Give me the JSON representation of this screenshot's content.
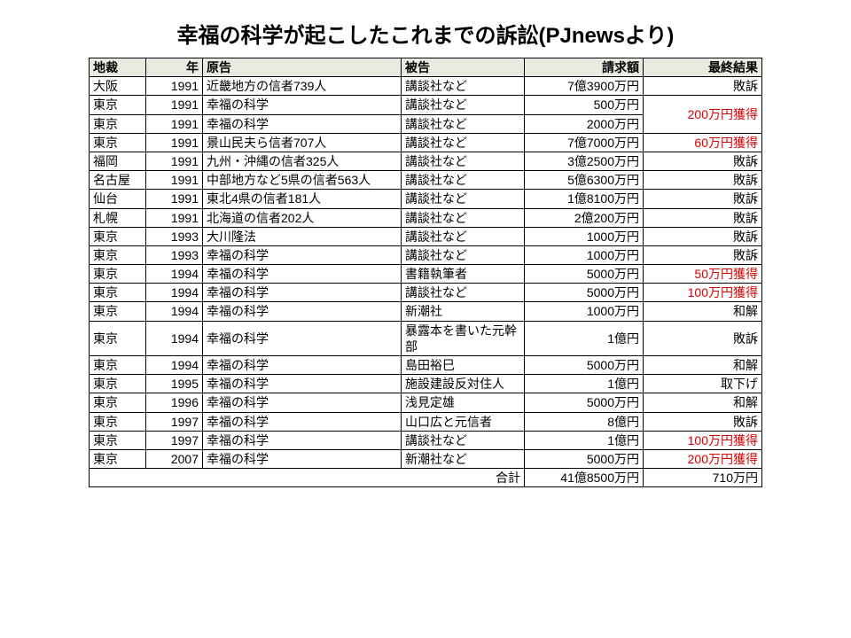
{
  "title": "幸福の科学が起こしたこれまでの訴訟(PJnewsより)",
  "columns": [
    "地裁",
    "年",
    "原告",
    "被告",
    "請求額",
    "最終結果"
  ],
  "rows": [
    {
      "court": "大阪",
      "year": "1991",
      "plaintiff": "近畿地方の信者739人",
      "defendant": "講談社など",
      "amount": "7億3900万円",
      "result": "敗訴",
      "red": false,
      "rowspan": 1
    },
    {
      "court": "東京",
      "year": "1991",
      "plaintiff": "幸福の科学",
      "defendant": "講談社など",
      "amount": "500万円",
      "result": "200万円獲得",
      "red": true,
      "rowspan": 2
    },
    {
      "court": "東京",
      "year": "1991",
      "plaintiff": "幸福の科学",
      "defendant": "講談社など",
      "amount": "2000万円",
      "result": "",
      "red": false,
      "rowspan": 0
    },
    {
      "court": "東京",
      "year": "1991",
      "plaintiff": "景山民夫ら信者707人",
      "defendant": "講談社など",
      "amount": "7億7000万円",
      "result": "60万円獲得",
      "red": true,
      "rowspan": 1
    },
    {
      "court": "福岡",
      "year": "1991",
      "plaintiff": "九州・沖縄の信者325人",
      "defendant": "講談社など",
      "amount": "3億2500万円",
      "result": "敗訴",
      "red": false,
      "rowspan": 1
    },
    {
      "court": "名古屋",
      "year": "1991",
      "plaintiff": "中部地方など5県の信者563人",
      "defendant": "講談社など",
      "amount": "5億6300万円",
      "result": "敗訴",
      "red": false,
      "rowspan": 1
    },
    {
      "court": "仙台",
      "year": "1991",
      "plaintiff": "東北4県の信者181人",
      "defendant": "講談社など",
      "amount": "1億8100万円",
      "result": "敗訴",
      "red": false,
      "rowspan": 1
    },
    {
      "court": "札幌",
      "year": "1991",
      "plaintiff": "北海道の信者202人",
      "defendant": "講談社など",
      "amount": "2億200万円",
      "result": "敗訴",
      "red": false,
      "rowspan": 1
    },
    {
      "court": "東京",
      "year": "1993",
      "plaintiff": "大川隆法",
      "defendant": "講談社など",
      "amount": "1000万円",
      "result": "敗訴",
      "red": false,
      "rowspan": 1
    },
    {
      "court": "東京",
      "year": "1993",
      "plaintiff": "幸福の科学",
      "defendant": "講談社など",
      "amount": "1000万円",
      "result": "敗訴",
      "red": false,
      "rowspan": 1
    },
    {
      "court": "東京",
      "year": "1994",
      "plaintiff": "幸福の科学",
      "defendant": "書籍執筆者",
      "amount": "5000万円",
      "result": "50万円獲得",
      "red": true,
      "rowspan": 1
    },
    {
      "court": "東京",
      "year": "1994",
      "plaintiff": "幸福の科学",
      "defendant": "講談社など",
      "amount": "5000万円",
      "result": "100万円獲得",
      "red": true,
      "rowspan": 1
    },
    {
      "court": "東京",
      "year": "1994",
      "plaintiff": "幸福の科学",
      "defendant": "新潮社",
      "amount": "1000万円",
      "result": "和解",
      "red": false,
      "rowspan": 1
    },
    {
      "court": "東京",
      "year": "1994",
      "plaintiff": "幸福の科学",
      "defendant": "暴露本を書いた元幹部",
      "amount": "1億円",
      "result": "敗訴",
      "red": false,
      "rowspan": 1
    },
    {
      "court": "東京",
      "year": "1994",
      "plaintiff": "幸福の科学",
      "defendant": "島田裕巳",
      "amount": "5000万円",
      "result": "和解",
      "red": false,
      "rowspan": 1
    },
    {
      "court": "東京",
      "year": "1995",
      "plaintiff": "幸福の科学",
      "defendant": "施設建設反対住人",
      "amount": "1億円",
      "result": "取下げ",
      "red": false,
      "rowspan": 1
    },
    {
      "court": "東京",
      "year": "1996",
      "plaintiff": "幸福の科学",
      "defendant": "浅見定雄",
      "amount": "5000万円",
      "result": "和解",
      "red": false,
      "rowspan": 1
    },
    {
      "court": "東京",
      "year": "1997",
      "plaintiff": "幸福の科学",
      "defendant": "山口広と元信者",
      "amount": "8億円",
      "result": "敗訴",
      "red": false,
      "rowspan": 1
    },
    {
      "court": "東京",
      "year": "1997",
      "plaintiff": "幸福の科学",
      "defendant": "講談社など",
      "amount": "1億円",
      "result": "100万円獲得",
      "red": true,
      "rowspan": 1
    },
    {
      "court": "東京",
      "year": "2007",
      "plaintiff": "幸福の科学",
      "defendant": "新潮社など",
      "amount": "5000万円",
      "result": "200万円獲得",
      "red": true,
      "rowspan": 1
    }
  ],
  "total": {
    "label": "合計",
    "amount": "41億8500万円",
    "result": "710万円"
  }
}
